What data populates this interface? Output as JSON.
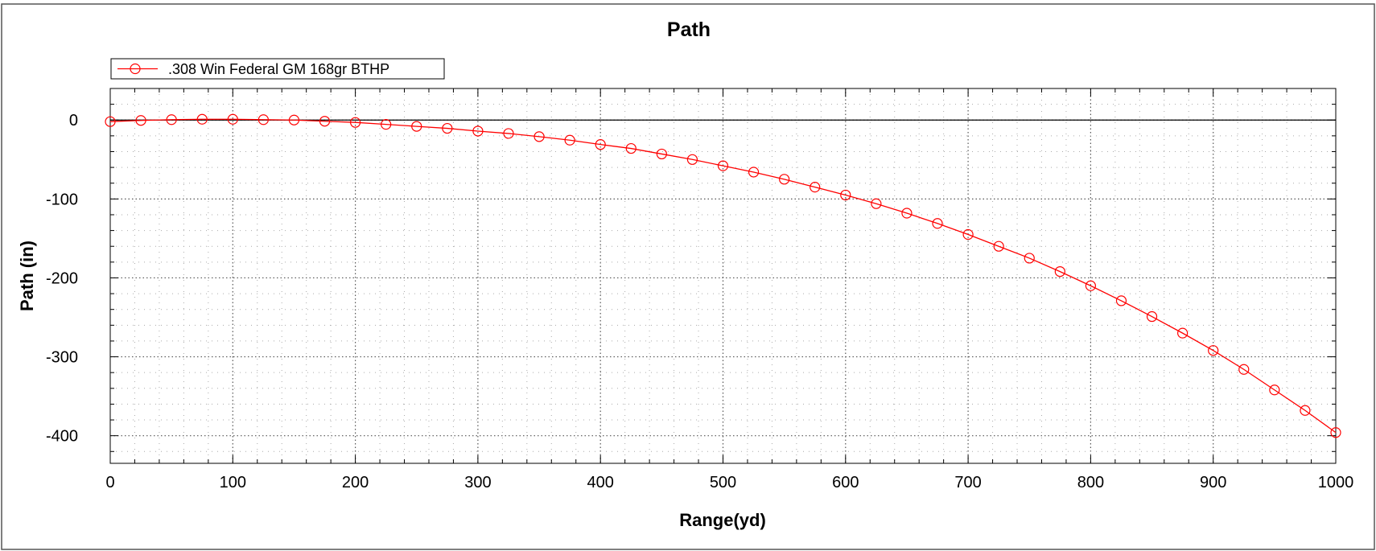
{
  "chart_data": {
    "type": "line",
    "title": "Path",
    "xlabel": "Range(yd)",
    "ylabel": "Path (in)",
    "xlim": [
      0,
      1000
    ],
    "ylim": [
      -435,
      40
    ],
    "x_ticks": [
      0,
      100,
      200,
      300,
      400,
      500,
      600,
      700,
      800,
      900,
      1000
    ],
    "y_ticks": [
      0,
      -100,
      -200,
      -300,
      -400
    ],
    "x_tick_labels": [
      "0",
      "100",
      "200",
      "300",
      "400",
      "500",
      "600",
      "700",
      "800",
      "900",
      "1000"
    ],
    "y_tick_labels": [
      "0",
      "-100",
      "-200",
      "-300",
      "-400"
    ],
    "grid": true,
    "zero_line": true,
    "legend_position": "top-left",
    "series": [
      {
        "name": ".308 Win Federal GM 168gr BTHP",
        "color": "#ff0000",
        "marker": "open-circle",
        "x": [
          0,
          25,
          50,
          75,
          100,
          125,
          150,
          175,
          200,
          225,
          250,
          275,
          300,
          325,
          350,
          375,
          400,
          425,
          450,
          475,
          500,
          525,
          550,
          575,
          600,
          625,
          650,
          675,
          700,
          725,
          750,
          775,
          800,
          825,
          850,
          875,
          900,
          925,
          950,
          975,
          1000
        ],
        "y": [
          -2,
          -0.5,
          0.5,
          1,
          1,
          0.5,
          0,
          -1.5,
          -3,
          -5.5,
          -8,
          -10.5,
          -14,
          -17,
          -21,
          -25.5,
          -31,
          -36,
          -43,
          -50,
          -58,
          -66,
          -75,
          -85,
          -95,
          -106,
          -118,
          -131,
          -145,
          -160,
          -175,
          -192,
          -210,
          -229,
          -249,
          -270,
          -292,
          -316,
          -342,
          -368,
          -396
        ]
      }
    ]
  }
}
